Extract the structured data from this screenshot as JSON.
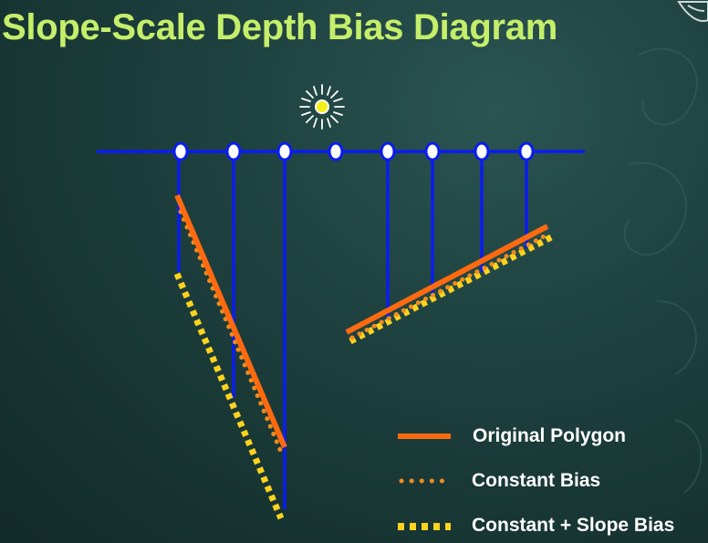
{
  "title": "Slope-Scale Depth Bias Diagram",
  "legend": {
    "original": "Original Polygon",
    "constant": "Constant Bias",
    "constant_slope": "Constant + Slope Bias"
  },
  "colors": {
    "title": "#c5ee6a",
    "shadow_plane": "#0a1cf0",
    "original_polygon": "#ff6a10",
    "constant_bias": "#f08c1e",
    "slope_bias": "#ffd21e",
    "light": "#f4ee1a",
    "legend_text": "#ffffff"
  },
  "icons": {
    "light": "sun-icon",
    "logo": "logo-icon"
  }
}
